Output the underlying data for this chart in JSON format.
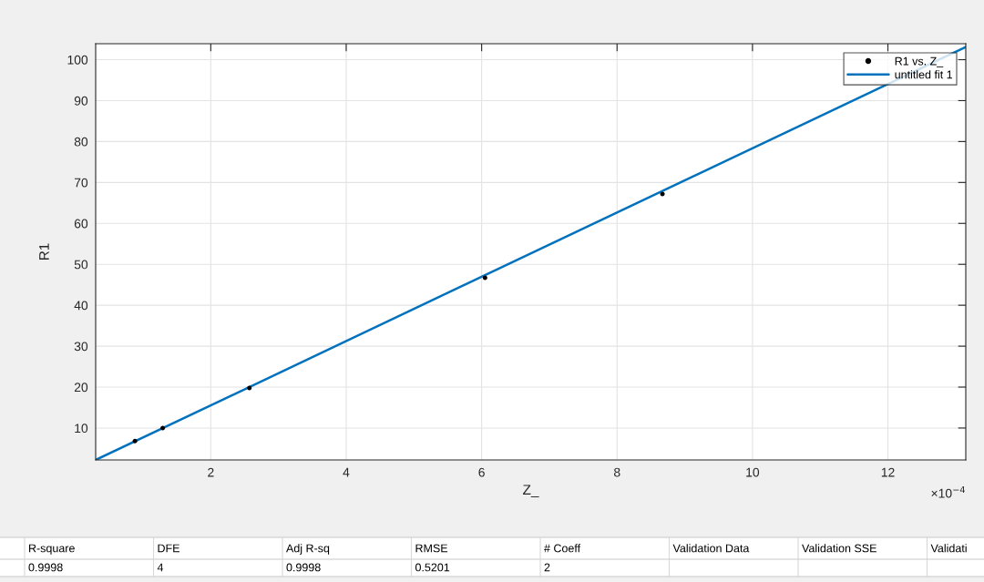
{
  "chart_data": {
    "type": "scatter",
    "xlabel": "Z_",
    "ylabel": "R1",
    "xlim": [
      0.3,
      13.15
    ],
    "ylim": [
      2.2,
      103.9
    ],
    "xticks": [
      2,
      4,
      6,
      8,
      10,
      12
    ],
    "yticks": [
      10,
      20,
      30,
      40,
      50,
      60,
      70,
      80,
      90,
      100
    ],
    "grid": true,
    "legend": "top right",
    "series": [
      {
        "name": "R1 vs. Z_",
        "color": "#000000",
        "marker": "circle",
        "x": [
          0.88,
          1.29,
          2.57,
          6.05,
          8.67
        ],
        "values": [
          6.8,
          10.0,
          19.8,
          46.7,
          67.2
        ]
      },
      {
        "name": "untitled fit 1",
        "type": "line",
        "color": "#0072bd",
        "marker": "none",
        "line_style": "solid",
        "x": [
          0.3,
          13.15
        ],
        "values": [
          2.2,
          103.1
        ]
      }
    ],
    "annotations": [
      "×10$^{−4}$",
      "R-square",
      "DFE",
      "Adj R-sq",
      "RMSE",
      "# Coeff",
      "Validation Data",
      "Validation SSE",
      "Validati",
      "0.9998",
      "4",
      "0.9998",
      "0.5201",
      "2"
    ]
  }
}
